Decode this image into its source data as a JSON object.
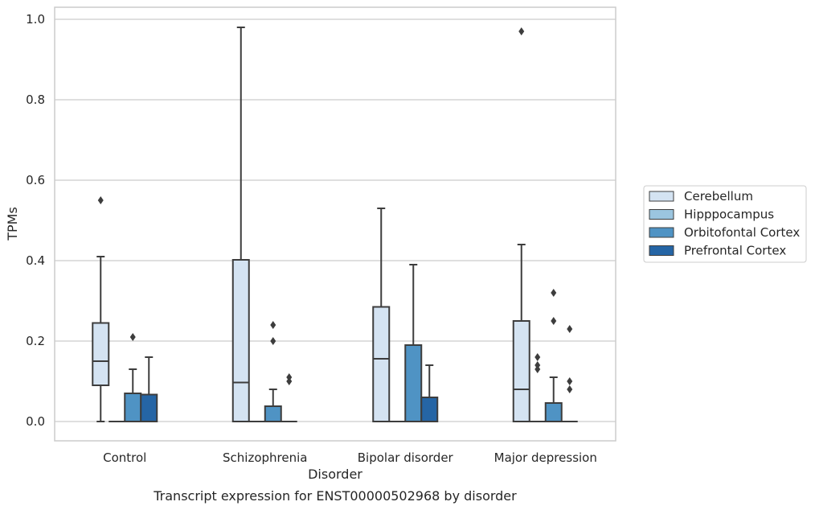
{
  "caption": "Transcript expression for ENST00000502968 by disorder",
  "chart_data": {
    "type": "box",
    "xlabel": "Disorder",
    "ylabel": "TPMs",
    "ylim": [
      -0.045,
      1.03
    ],
    "yticks": [
      "0.0",
      "0.2",
      "0.4",
      "0.6",
      "0.8",
      "1.0"
    ],
    "grid": true,
    "legend_position": "right",
    "categories": [
      "Control",
      "Schizophrenia",
      "Bipolar disorder",
      "Major depression"
    ],
    "series": [
      {
        "name": "Cerebellum",
        "color": "#d4e3f2",
        "boxes": [
          {
            "q1": 0.09,
            "median": 0.15,
            "q3": 0.245,
            "whisker_low": 0.0,
            "whisker_high": 0.41,
            "outliers": [
              0.55
            ]
          },
          {
            "q1": 0.0,
            "median": 0.097,
            "q3": 0.402,
            "whisker_low": 0.0,
            "whisker_high": 0.98,
            "outliers": []
          },
          {
            "q1": 0.0,
            "median": 0.156,
            "q3": 0.285,
            "whisker_low": 0.0,
            "whisker_high": 0.53,
            "outliers": []
          },
          {
            "q1": 0.0,
            "median": 0.08,
            "q3": 0.25,
            "whisker_low": 0.0,
            "whisker_high": 0.44,
            "outliers": [
              0.97
            ]
          }
        ]
      },
      {
        "name": "Hipppocampus",
        "color": "#9bc5df",
        "boxes": [
          {
            "q1": 0.0,
            "median": 0.0,
            "q3": 0.0,
            "whisker_low": 0.0,
            "whisker_high": 0.0,
            "outliers": []
          },
          {
            "q1": 0.0,
            "median": 0.0,
            "q3": 0.0,
            "whisker_low": 0.0,
            "whisker_high": 0.0,
            "outliers": []
          },
          {
            "q1": 0.0,
            "median": 0.0,
            "q3": 0.0,
            "whisker_low": 0.0,
            "whisker_high": 0.0,
            "outliers": []
          },
          {
            "q1": 0.0,
            "median": 0.0,
            "q3": 0.0,
            "whisker_low": 0.0,
            "whisker_high": 0.0,
            "outliers": [
              0.16,
              0.14,
              0.13
            ]
          }
        ]
      },
      {
        "name": "Orbitofontal Cortex",
        "color": "#4f93c4",
        "boxes": [
          {
            "q1": 0.0,
            "median": 0.0,
            "q3": 0.07,
            "whisker_low": 0.0,
            "whisker_high": 0.13,
            "outliers": [
              0.21
            ]
          },
          {
            "q1": 0.0,
            "median": 0.0,
            "q3": 0.038,
            "whisker_low": 0.0,
            "whisker_high": 0.08,
            "outliers": [
              0.24,
              0.2
            ]
          },
          {
            "q1": 0.0,
            "median": 0.0,
            "q3": 0.19,
            "whisker_low": 0.0,
            "whisker_high": 0.39,
            "outliers": []
          },
          {
            "q1": 0.0,
            "median": 0.0,
            "q3": 0.046,
            "whisker_low": 0.0,
            "whisker_high": 0.11,
            "outliers": [
              0.32,
              0.25
            ]
          }
        ]
      },
      {
        "name": "Prefrontal Cortex",
        "color": "#2565a5",
        "boxes": [
          {
            "q1": 0.0,
            "median": 0.0,
            "q3": 0.067,
            "whisker_low": 0.0,
            "whisker_high": 0.16,
            "outliers": []
          },
          {
            "q1": 0.0,
            "median": 0.0,
            "q3": 0.0,
            "whisker_low": 0.0,
            "whisker_high": 0.0,
            "outliers": [
              0.11,
              0.1
            ]
          },
          {
            "q1": 0.0,
            "median": 0.0,
            "q3": 0.06,
            "whisker_low": 0.0,
            "whisker_high": 0.14,
            "outliers": []
          },
          {
            "q1": 0.0,
            "median": 0.0,
            "q3": 0.0,
            "whisker_low": 0.0,
            "whisker_high": 0.0,
            "outliers": [
              0.23,
              0.1,
              0.08
            ]
          }
        ]
      }
    ]
  }
}
